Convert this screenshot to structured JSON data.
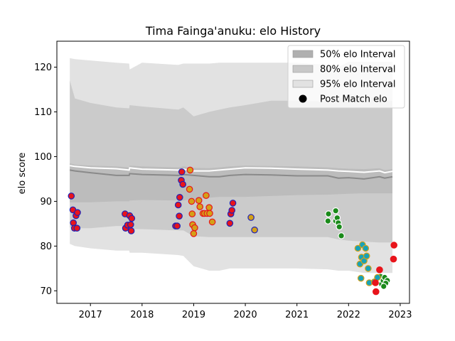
{
  "chart_data": {
    "type": "scatter",
    "title": "Tima Fainga'anuku: elo History",
    "xlabel": "",
    "ylabel": "elo score",
    "xlim": [
      2016.35,
      2023.18
    ],
    "ylim": [
      67.2,
      125.8
    ],
    "x_ticks": [
      {
        "value": 2017,
        "label": "2017"
      },
      {
        "value": 2018,
        "label": "2018"
      },
      {
        "value": 2019,
        "label": "2019"
      },
      {
        "value": 2020,
        "label": "2020"
      },
      {
        "value": 2021,
        "label": "2021"
      },
      {
        "value": 2022,
        "label": "2022"
      },
      {
        "value": 2023,
        "label": "2023"
      }
    ],
    "y_ticks": [
      {
        "value": 70,
        "label": "70"
      },
      {
        "value": 80,
        "label": "80"
      },
      {
        "value": 90,
        "label": "90"
      },
      {
        "value": 100,
        "label": "100"
      },
      {
        "value": 110,
        "label": "110"
      },
      {
        "value": 120,
        "label": "120"
      }
    ],
    "grid": false,
    "legend_position": "top-right",
    "legend": [
      {
        "label": "50% elo Interval",
        "kind": "band",
        "color": "#b0b0b0"
      },
      {
        "label": "80% elo Interval",
        "kind": "band",
        "color": "#c8c8c8"
      },
      {
        "label": "95% elo Interval",
        "kind": "band",
        "color": "#e2e2e2"
      },
      {
        "label": "Post Match elo",
        "kind": "marker",
        "color": "#000000"
      }
    ],
    "bands": {
      "x": [
        2016.6,
        2016.7,
        2017.0,
        2017.5,
        2017.75,
        2017.76,
        2018.0,
        2018.7,
        2018.8,
        2019.0,
        2019.3,
        2019.5,
        2019.7,
        2020.0,
        2020.5,
        2021.0,
        2021.6,
        2021.8,
        2022.0,
        2022.3,
        2022.6,
        2022.7,
        2022.85
      ],
      "mean": [
        98.0,
        97.8,
        97.5,
        97.3,
        97.0,
        97.5,
        97.2,
        97.0,
        97.2,
        96.8,
        96.8,
        97.0,
        97.2,
        97.5,
        97.4,
        97.2,
        97.0,
        96.8,
        96.7,
        96.5,
        96.8,
        96.4,
        96.7
      ],
      "median": [
        97.0,
        96.8,
        96.4,
        95.8,
        95.8,
        96.2,
        96.0,
        95.8,
        96.0,
        95.8,
        95.5,
        95.5,
        95.8,
        96.0,
        95.9,
        95.7,
        95.7,
        95.2,
        95.3,
        95.0,
        95.5,
        95.2,
        95.5
      ],
      "p50_low": [
        89.8,
        89.8,
        89.8,
        90.0,
        90.0,
        90.2,
        90.3,
        90.2,
        90.2,
        90.5,
        90.8,
        91.0,
        91.0,
        91.0,
        91.2,
        91.4,
        91.5,
        91.6,
        91.7,
        91.8,
        91.8,
        91.8,
        91.8
      ],
      "p50_high": [
        98.5,
        98.2,
        98.0,
        97.8,
        97.6,
        98.0,
        97.8,
        97.6,
        97.8,
        97.5,
        97.4,
        97.6,
        97.8,
        98.0,
        97.9,
        97.8,
        97.6,
        97.4,
        97.3,
        97.2,
        97.4,
        97.0,
        97.2
      ],
      "p80_low": [
        84.2,
        84.0,
        84.0,
        84.5,
        84.5,
        83.8,
        83.8,
        83.5,
        83.5,
        82.2,
        82.0,
        82.0,
        82.0,
        82.0,
        82.0,
        82.0,
        82.0,
        81.5,
        81.2,
        81.0,
        80.8,
        80.8,
        80.8
      ],
      "p80_high": [
        117.0,
        113.0,
        112.0,
        111.0,
        110.8,
        111.5,
        111.2,
        110.5,
        111.0,
        109.0,
        110.0,
        110.5,
        111.0,
        111.5,
        112.5,
        112.5,
        112.3,
        112.8,
        114.0,
        113.5,
        113.0,
        112.5,
        112.5
      ],
      "p95_low": [
        80.5,
        80.0,
        79.5,
        79.0,
        79.0,
        78.5,
        78.5,
        78.0,
        77.8,
        75.5,
        74.5,
        74.5,
        75.0,
        75.0,
        75.0,
        75.0,
        74.8,
        74.5,
        74.5,
        74.0,
        74.0,
        74.0,
        74.0
      ],
      "p95_high": [
        122.0,
        121.8,
        121.5,
        121.0,
        120.8,
        119.5,
        121.0,
        120.5,
        120.8,
        120.8,
        120.8,
        121.0,
        121.0,
        121.0,
        121.0,
        121.0,
        120.5,
        120.0,
        121.2,
        121.2,
        121.2,
        121.2,
        121.2
      ]
    },
    "series": [
      {
        "face": "#e8141b",
        "edge": "#1e22b8",
        "points": [
          [
            2016.63,
            91.2
          ],
          [
            2016.66,
            88.1
          ],
          [
            2016.67,
            85.2
          ],
          [
            2016.69,
            84.0
          ],
          [
            2016.72,
            86.8
          ],
          [
            2016.75,
            87.5
          ],
          [
            2016.74,
            84.0
          ],
          [
            2017.67,
            87.2
          ],
          [
            2017.68,
            84.0
          ],
          [
            2017.72,
            84.7
          ],
          [
            2017.76,
            86.8
          ],
          [
            2017.78,
            84.8
          ],
          [
            2017.79,
            83.4
          ],
          [
            2017.8,
            86.2
          ],
          [
            2018.65,
            84.5
          ],
          [
            2018.68,
            84.5
          ],
          [
            2018.7,
            89.2
          ],
          [
            2018.72,
            86.7
          ],
          [
            2018.73,
            90.9
          ],
          [
            2018.76,
            94.7
          ],
          [
            2018.77,
            96.6
          ],
          [
            2018.79,
            93.8
          ],
          [
            2019.7,
            85.1
          ],
          [
            2019.72,
            87.2
          ],
          [
            2019.74,
            88.0
          ],
          [
            2019.76,
            89.6
          ]
        ]
      },
      {
        "face": "#d4a017",
        "edge": "#e8141b",
        "points": [
          [
            2018.93,
            97.0
          ],
          [
            2018.92,
            92.7
          ],
          [
            2018.96,
            90.0
          ],
          [
            2018.97,
            87.2
          ],
          [
            2018.98,
            84.8
          ],
          [
            2019.0,
            82.8
          ],
          [
            2019.02,
            84.1
          ],
          [
            2019.1,
            90.2
          ],
          [
            2019.12,
            88.8
          ],
          [
            2019.18,
            87.3
          ],
          [
            2019.21,
            87.3
          ],
          [
            2019.24,
            91.3
          ],
          [
            2019.26,
            87.3
          ],
          [
            2019.3,
            88.6
          ],
          [
            2019.31,
            87.3
          ],
          [
            2019.36,
            85.4
          ]
        ]
      },
      {
        "face": "#d4a017",
        "edge": "#1e22b8",
        "points": [
          [
            2020.11,
            86.4
          ],
          [
            2020.18,
            83.6
          ]
        ]
      },
      {
        "face": "#1a8a1a",
        "edge": "#ffffff",
        "points": [
          [
            2021.61,
            87.2
          ],
          [
            2021.6,
            85.6
          ],
          [
            2021.75,
            87.9
          ],
          [
            2021.75,
            85.6
          ],
          [
            2021.78,
            86.3
          ],
          [
            2021.8,
            85.2
          ],
          [
            2021.82,
            84.3
          ],
          [
            2021.86,
            82.3
          ],
          [
            2022.62,
            73.2
          ],
          [
            2022.64,
            71.5
          ],
          [
            2022.67,
            72.3
          ],
          [
            2022.7,
            73.0
          ],
          [
            2022.75,
            72.3
          ],
          [
            2022.72,
            71.7
          ],
          [
            2022.68,
            71.0
          ]
        ]
      },
      {
        "face": "#17a2b8",
        "edge": "#d4a017",
        "points": [
          [
            2022.18,
            79.5
          ],
          [
            2022.22,
            76.0
          ],
          [
            2022.24,
            72.8
          ],
          [
            2022.25,
            77.5
          ],
          [
            2022.27,
            80.3
          ],
          [
            2022.3,
            76.7
          ],
          [
            2022.33,
            79.5
          ],
          [
            2022.35,
            77.8
          ],
          [
            2022.38,
            75.0
          ],
          [
            2022.4,
            71.8
          ],
          [
            2022.5,
            72.0
          ],
          [
            2022.56,
            73.0
          ]
        ]
      },
      {
        "face": "#e8141b",
        "edge": "#e8141b",
        "points": [
          [
            2022.52,
            71.8
          ],
          [
            2022.53,
            69.8
          ],
          [
            2022.6,
            74.7
          ],
          [
            2022.87,
            77.1
          ],
          [
            2022.88,
            80.2
          ]
        ]
      }
    ]
  }
}
